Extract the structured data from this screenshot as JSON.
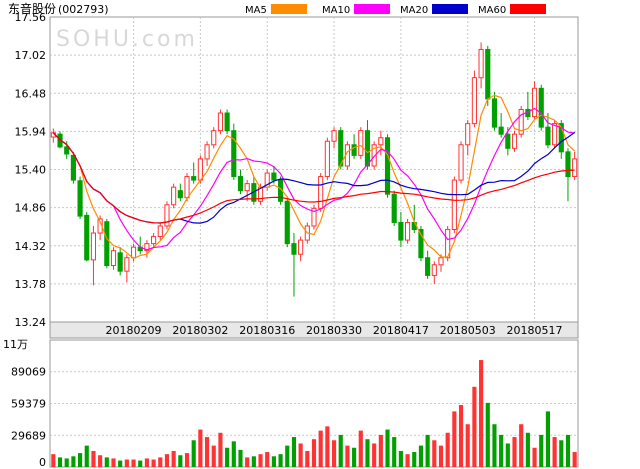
{
  "header": {
    "stock_name": "东音股份",
    "stock_code": "(002793)",
    "watermark": "SOHU.com",
    "legend": [
      {
        "name": "MA5",
        "color": "#ff8c00"
      },
      {
        "name": "MA10",
        "color": "#ff00ff"
      },
      {
        "name": "MA20",
        "color": "#0000cc"
      },
      {
        "name": "MA60",
        "color": "#ff0000"
      }
    ]
  },
  "colors": {
    "up": "#ff3333",
    "down": "#00a000",
    "grid": "#c8c8c8",
    "panel_bg": "#e8e8e8"
  },
  "chart_data": {
    "type": "candlestick",
    "price_axis": {
      "ticks": [
        "17.56",
        "17.02",
        "16.48",
        "15.94",
        "15.40",
        "14.86",
        "14.32",
        "13.78",
        "13.24"
      ],
      "min": 13.24,
      "max": 17.56
    },
    "date_labels": [
      "20180209",
      "20180302",
      "20180316",
      "20180330",
      "20180417",
      "20180503",
      "20180517"
    ],
    "date_label_bars": [
      12,
      22,
      32,
      42,
      52,
      62,
      72
    ],
    "ohlc": [
      [
        15.86,
        15.98,
        15.78,
        15.92
      ],
      [
        15.9,
        15.94,
        15.7,
        15.72
      ],
      [
        15.72,
        15.8,
        15.55,
        15.62
      ],
      [
        15.6,
        15.65,
        15.2,
        15.25
      ],
      [
        15.24,
        15.3,
        14.7,
        14.74
      ],
      [
        14.75,
        14.8,
        14.1,
        14.12
      ],
      [
        14.12,
        14.6,
        13.76,
        14.5
      ],
      [
        14.5,
        14.75,
        14.4,
        14.7
      ],
      [
        14.66,
        14.7,
        14.0,
        14.04
      ],
      [
        14.04,
        14.3,
        13.98,
        14.25
      ],
      [
        14.22,
        14.3,
        13.9,
        13.96
      ],
      [
        13.96,
        14.2,
        13.8,
        14.15
      ],
      [
        14.15,
        14.35,
        14.1,
        14.3
      ],
      [
        14.3,
        14.45,
        14.2,
        14.25
      ],
      [
        14.25,
        14.4,
        14.15,
        14.35
      ],
      [
        14.35,
        14.5,
        14.3,
        14.45
      ],
      [
        14.45,
        14.65,
        14.4,
        14.6
      ],
      [
        14.6,
        14.95,
        14.55,
        14.9
      ],
      [
        14.9,
        15.2,
        14.85,
        15.15
      ],
      [
        15.1,
        15.2,
        14.95,
        15.0
      ],
      [
        15.0,
        15.35,
        14.95,
        15.3
      ],
      [
        15.3,
        15.5,
        15.2,
        15.25
      ],
      [
        15.25,
        15.6,
        15.2,
        15.55
      ],
      [
        15.55,
        15.8,
        15.45,
        15.75
      ],
      [
        15.75,
        16.0,
        15.7,
        15.95
      ],
      [
        15.95,
        16.25,
        15.9,
        16.2
      ],
      [
        16.2,
        16.25,
        15.9,
        15.95
      ],
      [
        15.95,
        16.05,
        15.25,
        15.3
      ],
      [
        15.3,
        15.4,
        15.05,
        15.1
      ],
      [
        15.1,
        15.25,
        14.95,
        15.2
      ],
      [
        15.2,
        15.3,
        14.9,
        14.95
      ],
      [
        14.95,
        15.2,
        14.9,
        15.15
      ],
      [
        15.15,
        15.4,
        15.1,
        15.35
      ],
      [
        15.35,
        15.45,
        15.2,
        15.25
      ],
      [
        15.25,
        15.3,
        14.9,
        14.95
      ],
      [
        14.95,
        15.0,
        14.3,
        14.35
      ],
      [
        14.35,
        14.5,
        13.6,
        14.2
      ],
      [
        14.2,
        14.45,
        14.1,
        14.4
      ],
      [
        14.4,
        14.65,
        14.35,
        14.6
      ],
      [
        14.6,
        14.9,
        14.55,
        14.85
      ],
      [
        14.85,
        15.35,
        14.8,
        15.3
      ],
      [
        15.3,
        15.85,
        15.25,
        15.8
      ],
      [
        15.8,
        16.0,
        15.7,
        15.95
      ],
      [
        15.95,
        16.0,
        15.4,
        15.45
      ],
      [
        15.45,
        15.8,
        15.4,
        15.75
      ],
      [
        15.75,
        15.9,
        15.55,
        15.6
      ],
      [
        15.6,
        16.0,
        15.55,
        15.95
      ],
      [
        15.95,
        16.1,
        15.4,
        15.45
      ],
      [
        15.45,
        15.8,
        15.4,
        15.75
      ],
      [
        15.75,
        15.95,
        15.6,
        15.85
      ],
      [
        15.85,
        15.9,
        15.0,
        15.05
      ],
      [
        15.05,
        15.1,
        14.6,
        14.65
      ],
      [
        14.65,
        14.8,
        14.3,
        14.4
      ],
      [
        14.4,
        14.7,
        14.35,
        14.65
      ],
      [
        14.65,
        14.9,
        14.5,
        14.55
      ],
      [
        14.55,
        14.6,
        14.1,
        14.15
      ],
      [
        14.15,
        14.25,
        13.85,
        13.9
      ],
      [
        13.9,
        14.1,
        13.78,
        14.05
      ],
      [
        14.05,
        14.2,
        13.95,
        14.15
      ],
      [
        14.15,
        14.6,
        14.1,
        14.55
      ],
      [
        14.55,
        15.3,
        14.5,
        15.25
      ],
      [
        15.25,
        15.8,
        15.2,
        15.75
      ],
      [
        15.75,
        16.1,
        15.6,
        16.05
      ],
      [
        16.05,
        16.8,
        16.0,
        16.7
      ],
      [
        16.7,
        17.2,
        16.55,
        17.1
      ],
      [
        17.1,
        17.15,
        16.3,
        16.4
      ],
      [
        16.4,
        16.5,
        15.95,
        16.0
      ],
      [
        16.0,
        16.2,
        15.85,
        15.9
      ],
      [
        15.9,
        16.0,
        15.6,
        15.7
      ],
      [
        15.7,
        15.95,
        15.65,
        15.9
      ],
      [
        15.9,
        16.3,
        15.85,
        16.25
      ],
      [
        16.25,
        16.5,
        16.1,
        16.15
      ],
      [
        16.15,
        16.65,
        16.1,
        16.55
      ],
      [
        16.55,
        16.6,
        15.95,
        16.0
      ],
      [
        16.0,
        16.2,
        15.7,
        15.75
      ],
      [
        15.75,
        16.1,
        15.7,
        16.05
      ],
      [
        16.05,
        16.1,
        15.55,
        15.65
      ],
      [
        15.65,
        15.7,
        14.95,
        15.3
      ],
      [
        15.3,
        15.65,
        15.25,
        15.55
      ]
    ],
    "volume_axis": {
      "unit": "11万",
      "ticks": [
        "89069",
        "59379",
        "29689",
        "0"
      ],
      "max": 118758
    },
    "volume": [
      12000,
      9000,
      8000,
      10000,
      13000,
      20000,
      15000,
      11000,
      9000,
      8000,
      6000,
      7000,
      7000,
      6000,
      8000,
      7000,
      9000,
      12000,
      15000,
      11000,
      13000,
      25000,
      35000,
      28000,
      20000,
      32000,
      18000,
      24000,
      16000,
      9000,
      10000,
      12000,
      14000,
      10000,
      12000,
      20000,
      28000,
      22000,
      15000,
      26000,
      34000,
      38000,
      25000,
      30000,
      20000,
      18000,
      34000,
      26000,
      22000,
      30000,
      35000,
      28000,
      15000,
      12000,
      14000,
      20000,
      30000,
      25000,
      20000,
      32000,
      52000,
      58000,
      40000,
      75000,
      100000,
      60000,
      40000,
      30000,
      22000,
      28000,
      40000,
      32000,
      18000,
      30000,
      52000,
      28000,
      25000,
      30000,
      14000
    ]
  }
}
